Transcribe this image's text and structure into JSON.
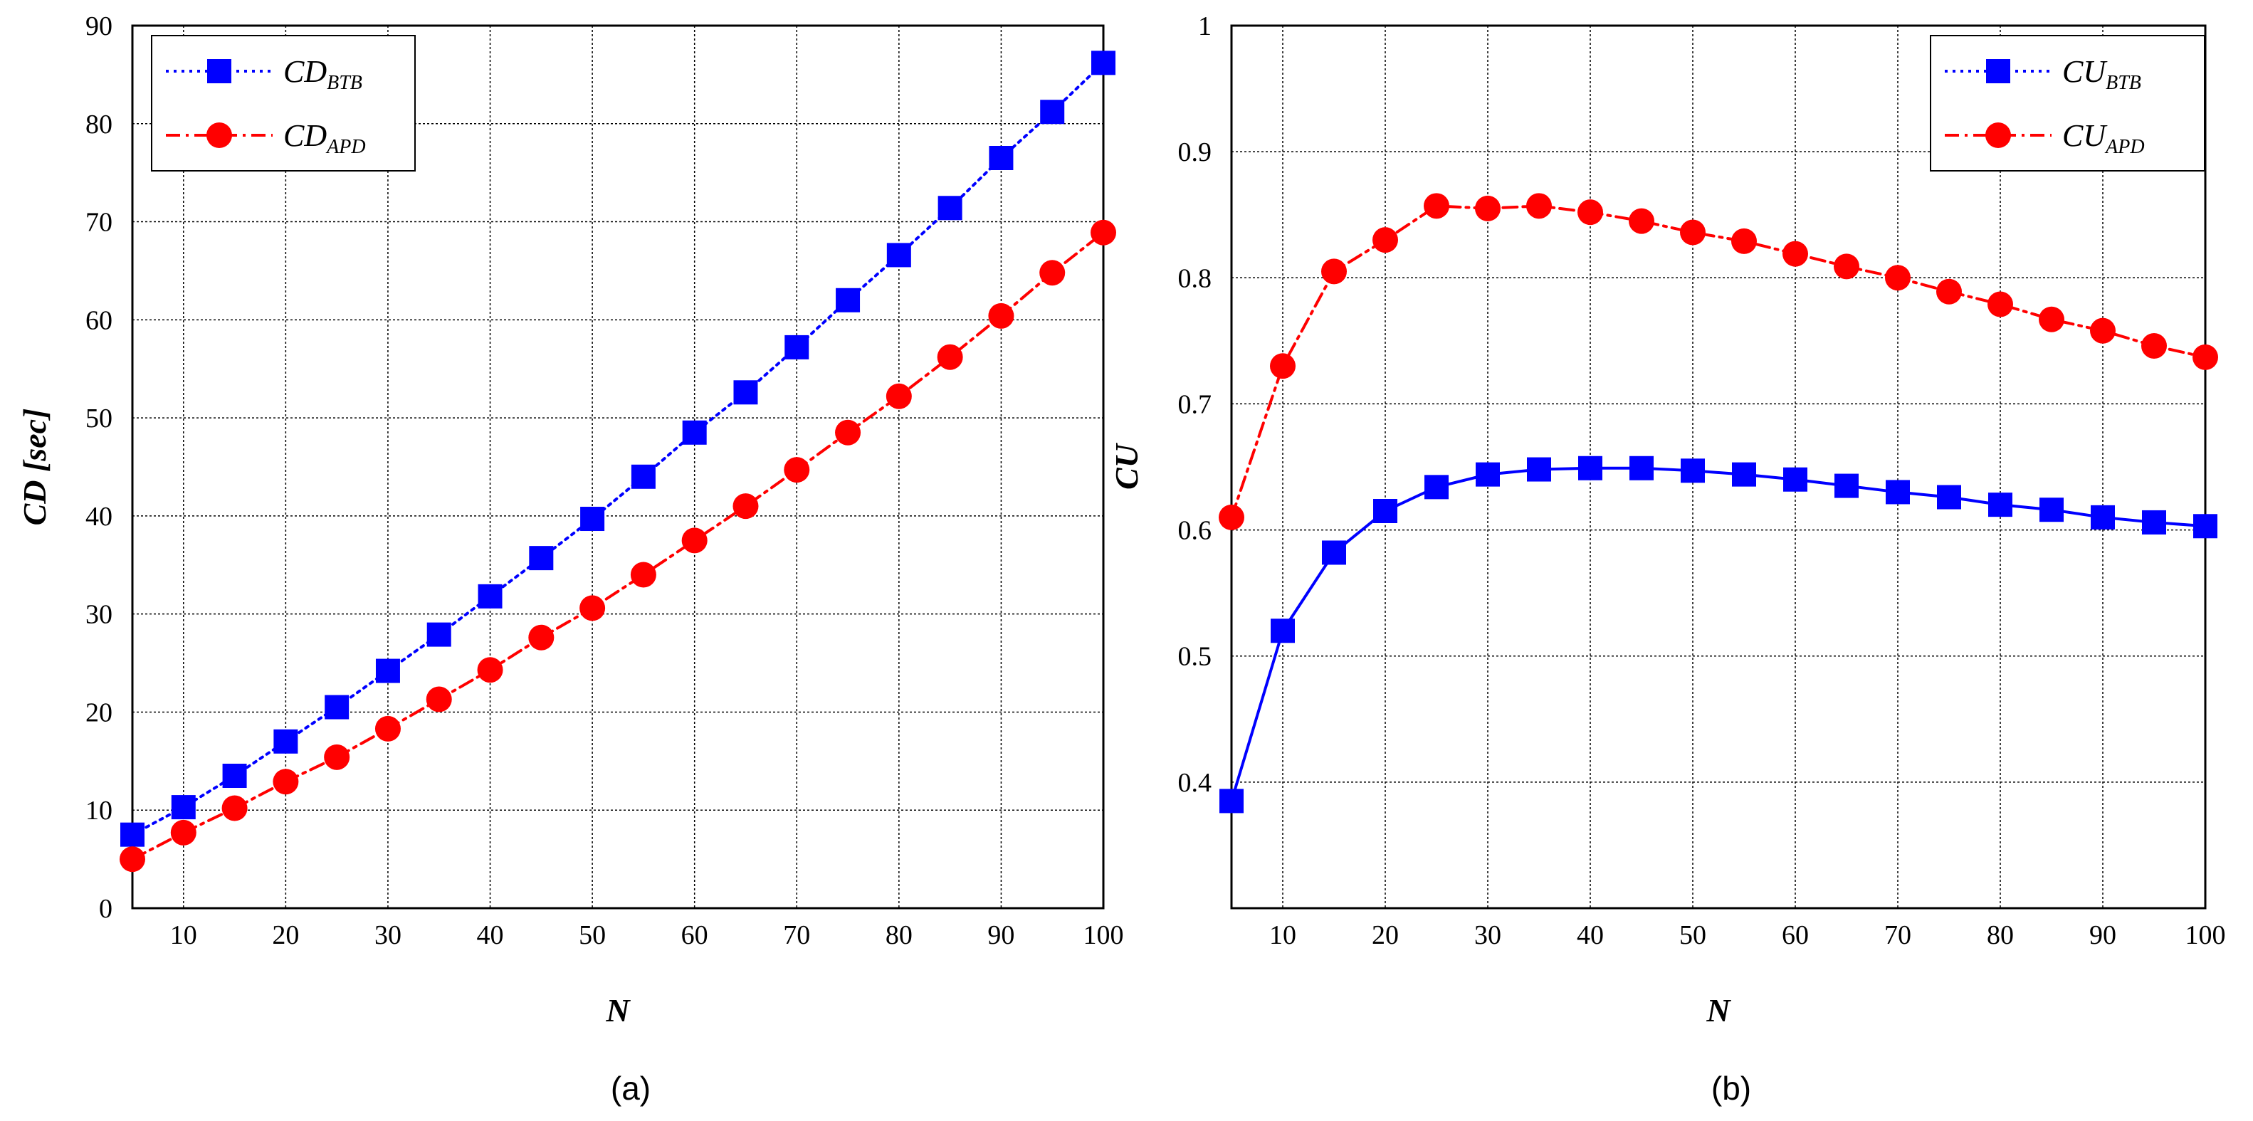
{
  "chart_data": [
    {
      "type": "line",
      "caption": "(a)",
      "xlabel": "N",
      "ylabel": "CD [sec]",
      "xlim": [
        5,
        100
      ],
      "ylim": [
        0,
        90
      ],
      "xticks": [
        10,
        20,
        30,
        40,
        50,
        60,
        70,
        80,
        90,
        100
      ],
      "yticks": [
        0,
        10,
        20,
        30,
        40,
        50,
        60,
        70,
        80,
        90
      ],
      "grid": true,
      "legend_position": "top-left",
      "x": [
        5,
        10,
        15,
        20,
        25,
        30,
        35,
        40,
        45,
        50,
        55,
        60,
        65,
        70,
        75,
        80,
        85,
        90,
        95,
        100
      ],
      "series": [
        {
          "name": "CD_BTB",
          "legend_main": "CD",
          "legend_sub": "BTB",
          "color": "#0000ff",
          "marker": "square",
          "line_style": "dotted",
          "values": [
            7.5,
            10.3,
            13.5,
            17.0,
            20.5,
            24.2,
            27.9,
            31.8,
            35.7,
            39.7,
            44.0,
            48.5,
            52.6,
            57.2,
            62.0,
            66.6,
            71.4,
            76.5,
            81.2,
            86.2
          ]
        },
        {
          "name": "CD_APD",
          "legend_main": "CD",
          "legend_sub": "APD",
          "color": "#ff0000",
          "marker": "circle",
          "line_style": "dash-dot",
          "values": [
            5.0,
            7.7,
            10.2,
            12.9,
            15.4,
            18.3,
            21.3,
            24.3,
            27.6,
            30.6,
            34.0,
            37.5,
            41.0,
            44.7,
            48.5,
            52.2,
            56.2,
            60.4,
            64.8,
            68.9
          ]
        }
      ]
    },
    {
      "type": "line",
      "caption": "(b)",
      "xlabel": "N",
      "ylabel": "CU",
      "xlim": [
        5,
        100
      ],
      "ylim": [
        0.3,
        1.0
      ],
      "xticks": [
        10,
        20,
        30,
        40,
        50,
        60,
        70,
        80,
        90,
        100
      ],
      "yticks": [
        0.4,
        0.5,
        0.6,
        0.7,
        0.8,
        0.9,
        1
      ],
      "ytick_labels": [
        "0.4",
        "0.5",
        "0.6",
        "0.7",
        "0.8",
        "0.9",
        "1"
      ],
      "grid": true,
      "legend_position": "top-right",
      "x": [
        5,
        10,
        15,
        20,
        25,
        30,
        35,
        40,
        45,
        50,
        55,
        60,
        65,
        70,
        75,
        80,
        85,
        90,
        95,
        100
      ],
      "series": [
        {
          "name": "CU_BTB",
          "legend_main": "CU",
          "legend_sub": "BTB",
          "color": "#0000ff",
          "marker": "square",
          "line_style": "solid",
          "legend_line_style": "dotted",
          "values": [
            0.385,
            0.52,
            0.582,
            0.615,
            0.634,
            0.644,
            0.648,
            0.649,
            0.649,
            0.647,
            0.644,
            0.64,
            0.635,
            0.63,
            0.626,
            0.62,
            0.616,
            0.61,
            0.606,
            0.603
          ]
        },
        {
          "name": "CU_APD",
          "legend_main": "CU",
          "legend_sub": "APD",
          "color": "#ff0000",
          "marker": "circle",
          "line_style": "dash-dot",
          "values": [
            0.61,
            0.73,
            0.805,
            0.83,
            0.857,
            0.855,
            0.857,
            0.852,
            0.845,
            0.836,
            0.829,
            0.819,
            0.809,
            0.8,
            0.789,
            0.779,
            0.767,
            0.758,
            0.746,
            0.737
          ]
        }
      ]
    }
  ]
}
